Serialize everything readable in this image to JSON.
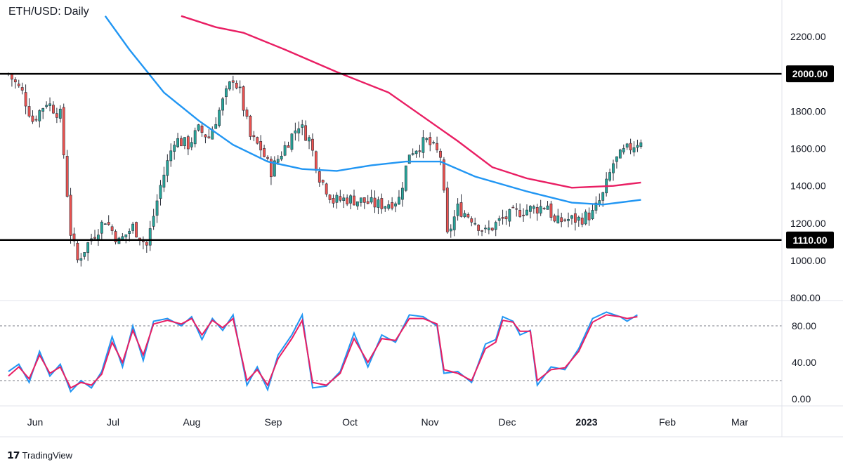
{
  "header": {
    "title": "ETH/USD: Daily"
  },
  "footer": {
    "brand_icon": "tradingview-logo-icon",
    "brand_name": "TradingView"
  },
  "colors": {
    "bull": "#26a69a",
    "bear": "#ef5350",
    "candle": "#2a2e39",
    "ma_slow": "#e91e63",
    "ma_fast": "#2196f3",
    "stoch_k": "#2196f3",
    "stoch_d": "#e91e63",
    "hline": "#000000"
  },
  "chart_data": [
    {
      "type": "candlestick",
      "title": "ETH/USD: Daily",
      "ylim": [
        800,
        2300
      ],
      "y_ticks": [
        "2200.00",
        "1800.00",
        "1600.00",
        "1400.00",
        "1200.00",
        "1000.00",
        "800.00"
      ],
      "x_ticks": [
        "Jun",
        "Jul",
        "Aug",
        "Sep",
        "Oct",
        "Nov",
        "Dec",
        "2023",
        "Feb",
        "Mar"
      ],
      "horizontal_levels": [
        {
          "value": 2000,
          "label": "2000.00"
        },
        {
          "value": 1110,
          "label": "1110.00"
        }
      ],
      "price_path_close": [
        [
          0,
          2000
        ],
        [
          4,
          1900
        ],
        [
          7,
          1750
        ],
        [
          11,
          1850
        ],
        [
          15,
          1780
        ],
        [
          18,
          1150
        ],
        [
          20,
          1000
        ],
        [
          24,
          1120
        ],
        [
          28,
          1220
        ],
        [
          32,
          1100
        ],
        [
          36,
          1180
        ],
        [
          40,
          1080
        ],
        [
          44,
          1400
        ],
        [
          48,
          1650
        ],
        [
          52,
          1620
        ],
        [
          55,
          1700
        ],
        [
          58,
          1660
        ],
        [
          62,
          1850
        ],
        [
          65,
          1980
        ],
        [
          67,
          1900
        ],
        [
          70,
          1660
        ],
        [
          73,
          1600
        ],
        [
          76,
          1480
        ],
        [
          80,
          1610
        ],
        [
          84,
          1730
        ],
        [
          87,
          1650
        ],
        [
          90,
          1450
        ],
        [
          94,
          1320
        ],
        [
          98,
          1330
        ],
        [
          102,
          1320
        ],
        [
          106,
          1300
        ],
        [
          109,
          1300
        ],
        [
          113,
          1330
        ],
        [
          116,
          1580
        ],
        [
          121,
          1640
        ],
        [
          125,
          1560
        ],
        [
          127,
          1130
        ],
        [
          130,
          1280
        ],
        [
          134,
          1230
        ],
        [
          138,
          1150
        ],
        [
          142,
          1210
        ],
        [
          146,
          1250
        ],
        [
          149,
          1270
        ],
        [
          153,
          1280
        ],
        [
          156,
          1300
        ],
        [
          158,
          1200
        ],
        [
          161,
          1220
        ],
        [
          165,
          1220
        ],
        [
          169,
          1250
        ],
        [
          172,
          1350
        ],
        [
          175,
          1520
        ],
        [
          178,
          1580
        ],
        [
          181,
          1620
        ],
        [
          183,
          1650
        ]
      ],
      "moving_averages": [
        {
          "name": "",
          "color": "#e91e63",
          "points": [
            [
              50,
              2310
            ],
            [
              60,
              2250
            ],
            [
              68,
              2220
            ],
            [
              80,
              2130
            ],
            [
              95,
              2010
            ],
            [
              110,
              1900
            ],
            [
              120,
              1770
            ],
            [
              130,
              1640
            ],
            [
              140,
              1500
            ],
            [
              150,
              1440
            ],
            [
              163,
              1390
            ],
            [
              175,
              1400
            ],
            [
              183,
              1418
            ]
          ]
        },
        {
          "name": "",
          "color": "#2196f3",
          "points": [
            [
              28,
              2310
            ],
            [
              35,
              2130
            ],
            [
              45,
              1900
            ],
            [
              55,
              1750
            ],
            [
              65,
              1620
            ],
            [
              75,
              1530
            ],
            [
              85,
              1490
            ],
            [
              95,
              1480
            ],
            [
              105,
              1510
            ],
            [
              115,
              1530
            ],
            [
              125,
              1530
            ],
            [
              135,
              1450
            ],
            [
              150,
              1370
            ],
            [
              163,
              1310
            ],
            [
              172,
              1300
            ],
            [
              183,
              1325
            ]
          ]
        }
      ]
    },
    {
      "type": "line",
      "title": "",
      "ylim": [
        0,
        100
      ],
      "y_ticks": [
        "80.00",
        "40.00",
        "0.00"
      ],
      "reference_lines": [
        80,
        20
      ],
      "series": [
        {
          "name": "",
          "color": "#2196f3",
          "points": [
            [
              0,
              30
            ],
            [
              3,
              38
            ],
            [
              6,
              18
            ],
            [
              9,
              52
            ],
            [
              12,
              25
            ],
            [
              15,
              38
            ],
            [
              18,
              8
            ],
            [
              21,
              20
            ],
            [
              24,
              12
            ],
            [
              27,
              30
            ],
            [
              30,
              68
            ],
            [
              33,
              35
            ],
            [
              36,
              80
            ],
            [
              39,
              42
            ],
            [
              42,
              85
            ],
            [
              46,
              88
            ],
            [
              50,
              80
            ],
            [
              53,
              90
            ],
            [
              56,
              65
            ],
            [
              59,
              88
            ],
            [
              62,
              75
            ],
            [
              65,
              92
            ],
            [
              69,
              15
            ],
            [
              72,
              35
            ],
            [
              75,
              10
            ],
            [
              78,
              48
            ],
            [
              82,
              70
            ],
            [
              85,
              92
            ],
            [
              88,
              12
            ],
            [
              92,
              14
            ],
            [
              96,
              30
            ],
            [
              100,
              72
            ],
            [
              104,
              35
            ],
            [
              108,
              70
            ],
            [
              112,
              62
            ],
            [
              116,
              92
            ],
            [
              120,
              90
            ],
            [
              124,
              80
            ],
            [
              126,
              28
            ],
            [
              130,
              30
            ],
            [
              134,
              18
            ],
            [
              138,
              60
            ],
            [
              141,
              65
            ],
            [
              143,
              90
            ],
            [
              146,
              85
            ],
            [
              148,
              70
            ],
            [
              151,
              75
            ],
            [
              153,
              15
            ],
            [
              157,
              35
            ],
            [
              161,
              32
            ],
            [
              165,
              55
            ],
            [
              169,
              88
            ],
            [
              173,
              95
            ],
            [
              177,
              90
            ],
            [
              179,
              85
            ],
            [
              182,
              92
            ]
          ]
        },
        {
          "name": "",
          "color": "#e91e63",
          "points": [
            [
              0,
              25
            ],
            [
              3,
              35
            ],
            [
              6,
              22
            ],
            [
              9,
              48
            ],
            [
              12,
              28
            ],
            [
              15,
              35
            ],
            [
              18,
              12
            ],
            [
              21,
              18
            ],
            [
              24,
              15
            ],
            [
              27,
              27
            ],
            [
              30,
              62
            ],
            [
              33,
              40
            ],
            [
              36,
              75
            ],
            [
              39,
              48
            ],
            [
              42,
              82
            ],
            [
              46,
              86
            ],
            [
              50,
              82
            ],
            [
              53,
              88
            ],
            [
              56,
              70
            ],
            [
              59,
              86
            ],
            [
              62,
              78
            ],
            [
              65,
              88
            ],
            [
              69,
              20
            ],
            [
              72,
              32
            ],
            [
              75,
              15
            ],
            [
              78,
              44
            ],
            [
              82,
              66
            ],
            [
              85,
              86
            ],
            [
              88,
              18
            ],
            [
              92,
              15
            ],
            [
              96,
              28
            ],
            [
              100,
              66
            ],
            [
              104,
              40
            ],
            [
              108,
              66
            ],
            [
              112,
              64
            ],
            [
              116,
              88
            ],
            [
              120,
              88
            ],
            [
              124,
              82
            ],
            [
              126,
              32
            ],
            [
              130,
              28
            ],
            [
              134,
              20
            ],
            [
              138,
              55
            ],
            [
              141,
              62
            ],
            [
              143,
              86
            ],
            [
              146,
              84
            ],
            [
              148,
              74
            ],
            [
              151,
              74
            ],
            [
              153,
              20
            ],
            [
              157,
              32
            ],
            [
              161,
              34
            ],
            [
              165,
              52
            ],
            [
              169,
              84
            ],
            [
              173,
              92
            ],
            [
              177,
              90
            ],
            [
              179,
              88
            ],
            [
              182,
              90
            ]
          ]
        }
      ]
    }
  ]
}
